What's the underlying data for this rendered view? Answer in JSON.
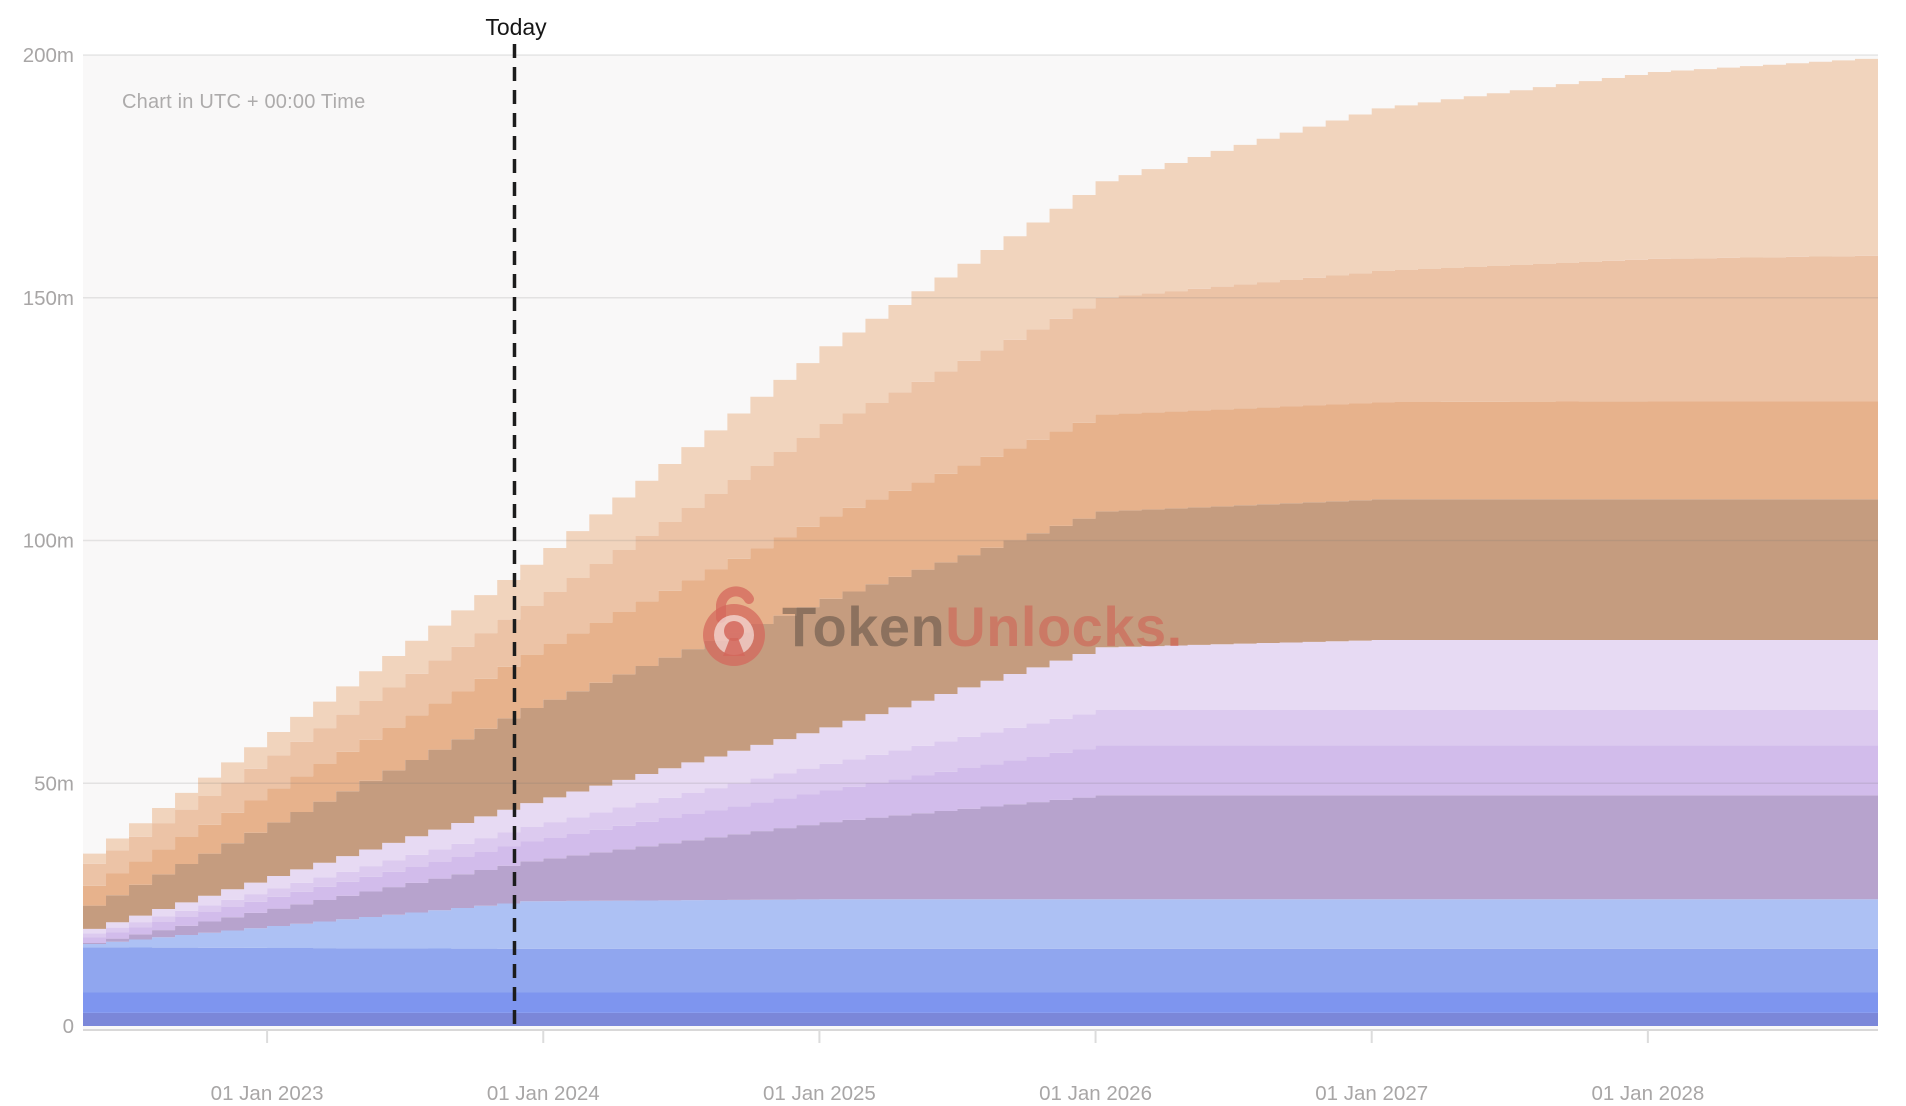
{
  "header": {
    "timezone_note": "Chart in UTC + 00:00 Time",
    "today_label": "Today"
  },
  "watermark": {
    "brand_first": "Token",
    "brand_second": "Unlocks",
    "brand_period": ".",
    "icon_color": "#d4675c"
  },
  "chart_data": {
    "type": "area",
    "stacked": true,
    "step_interval": "monthly",
    "title": "",
    "xlabel": "",
    "ylabel": "",
    "ylim": [
      0,
      200
    ],
    "grid": "horizontal",
    "legend_position": "none",
    "plot_background": "#f9f8f8",
    "gridline_color": "rgba(110,110,110,0.16)",
    "axis_line_color": "#d9d8d8",
    "axis_label_color": "#a8a6a6",
    "today_line_color": "#1c1c1c",
    "months_total": 78,
    "today_month": 18.75,
    "y_ticks": [
      {
        "value": 0,
        "label": "0"
      },
      {
        "value": 50,
        "label": "50m"
      },
      {
        "value": 100,
        "label": "100m"
      },
      {
        "value": 150,
        "label": "150m"
      },
      {
        "value": 200,
        "label": "200m"
      }
    ],
    "x_ticks": [
      {
        "month": 8,
        "label": "01 Jan 2023"
      },
      {
        "month": 20,
        "label": "01 Jan 2024"
      },
      {
        "month": 32,
        "label": "01 Jan 2025"
      },
      {
        "month": 44,
        "label": "01 Jan 2026"
      },
      {
        "month": 56,
        "label": "01 Jan 2027"
      },
      {
        "month": 68,
        "label": "01 Jan 2028"
      }
    ],
    "keyframe_months": [
      0,
      19,
      32,
      44,
      56,
      68,
      78
    ],
    "series": [
      {
        "name": "band-01-indigo",
        "label": "",
        "color": "#7b87d9",
        "cumulative_top": [
          2.7,
          2.7,
          2.7,
          2.7,
          2.7,
          2.7,
          2.7
        ]
      },
      {
        "name": "band-02-strong-blue",
        "label": "",
        "color": "#7e95ef",
        "cumulative_top": [
          6.9,
          6.9,
          6.9,
          6.9,
          6.9,
          6.9,
          6.9
        ]
      },
      {
        "name": "band-03-medium-blue",
        "label": "",
        "color": "#90a6ef",
        "cumulative_top": [
          16.2,
          15.9,
          15.9,
          15.9,
          15.9,
          15.9,
          15.9
        ]
      },
      {
        "name": "band-04-light-blue",
        "label": "",
        "color": "#adc1f4",
        "cumulative_top": [
          16.9,
          25.7,
          26.1,
          26.1,
          26.1,
          26.1,
          26.1
        ]
      },
      {
        "name": "band-05-mauve",
        "label": "",
        "color": "#b7a3cd",
        "cumulative_top": [
          17.1,
          33.9,
          42.0,
          47.5,
          47.5,
          47.5,
          47.5
        ]
      },
      {
        "name": "band-06-lavender",
        "label": "",
        "color": "#d2bceb",
        "cumulative_top": [
          18.3,
          38.0,
          48.5,
          57.8,
          57.8,
          57.8,
          57.8
        ]
      },
      {
        "name": "band-07-light-lavender",
        "label": "",
        "color": "#dccaef",
        "cumulative_top": [
          19.1,
          41.0,
          54.0,
          65.1,
          65.1,
          65.1,
          65.1
        ]
      },
      {
        "name": "band-08-pale-lavender",
        "label": "",
        "color": "#e7daf3",
        "cumulative_top": [
          20.0,
          45.9,
          61.5,
          78.0,
          79.5,
          79.5,
          79.5
        ]
      },
      {
        "name": "band-09-brown",
        "label": "",
        "color": "#c59c7f",
        "cumulative_top": [
          24.8,
          65.5,
          88.0,
          106.0,
          108.5,
          108.5,
          108.5
        ]
      },
      {
        "name": "band-10-orange",
        "label": "",
        "color": "#e7b28c",
        "cumulative_top": [
          28.9,
          76.5,
          105.0,
          126.0,
          128.5,
          128.7,
          128.7
        ]
      },
      {
        "name": "band-11-peach",
        "label": "",
        "color": "#ecc3a6",
        "cumulative_top": [
          33.4,
          86.5,
          124.0,
          150.0,
          155.5,
          158.0,
          158.7
        ]
      },
      {
        "name": "band-12-light-peach",
        "label": "",
        "color": "#f1d4bd",
        "cumulative_top": [
          35.5,
          95.0,
          140.0,
          174.0,
          189.0,
          196.5,
          199.5
        ]
      }
    ]
  }
}
